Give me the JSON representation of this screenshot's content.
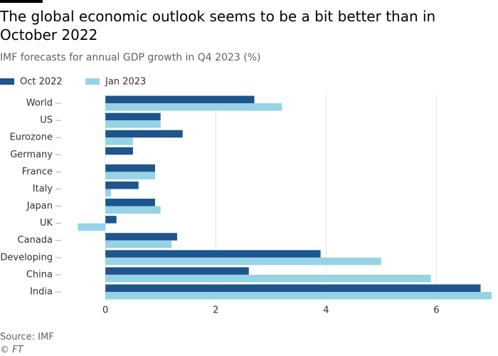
{
  "chart_data": {
    "type": "bar",
    "orientation": "horizontal",
    "title": "The global economic outlook seems to be a bit better than in October 2022",
    "subtitle": "IMF forecasts for annual GDP growth in Q4 2023 (%)",
    "categories": [
      "World",
      "US",
      "Eurozone",
      "Germany",
      "France",
      "Italy",
      "Japan",
      "UK",
      "Canada",
      "Developing",
      "China",
      "India"
    ],
    "series": [
      {
        "name": "Oct 2022",
        "color": "#1e558c",
        "values": [
          2.7,
          1.0,
          1.4,
          0.5,
          0.9,
          0.6,
          0.9,
          0.2,
          1.3,
          3.9,
          2.6,
          6.8
        ]
      },
      {
        "name": "Jan 2023",
        "color": "#96d3e6",
        "values": [
          3.2,
          1.0,
          0.5,
          0,
          0.9,
          0.1,
          1.0,
          -0.5,
          1.2,
          5.0,
          5.9,
          7.0
        ]
      }
    ],
    "xlim": [
      -0.75,
      7.0
    ],
    "xticks": [
      0,
      2,
      4,
      6
    ],
    "grid": true,
    "source": "Source: IMF",
    "credit": "© FT"
  }
}
